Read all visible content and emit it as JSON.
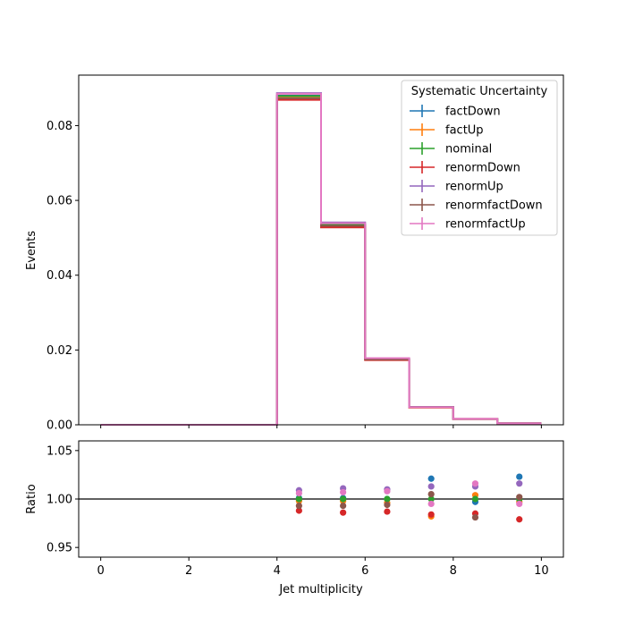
{
  "chart_data": [
    {
      "type": "step",
      "ylabel": "Events",
      "xlim": [
        -0.5,
        10.5
      ],
      "ylim": [
        0,
        0.0935
      ],
      "yticks": [
        0.0,
        0.02,
        0.04,
        0.06,
        0.08
      ],
      "ytick_labels": [
        "0.00",
        "0.02",
        "0.04",
        "0.06",
        "0.08"
      ],
      "bin_edges": [
        0,
        1,
        2,
        3,
        4,
        5,
        6,
        7,
        8,
        9,
        10
      ],
      "legend": {
        "title": "Systematic Uncertainty",
        "placement": "top-right"
      },
      "series": [
        {
          "name": "factDown",
          "color": "#1f77b4",
          "values": [
            0,
            0,
            0,
            0,
            0.088,
            0.0535,
            0.0176,
            0.00475,
            0.00155,
            0.0004
          ]
        },
        {
          "name": "factUp",
          "color": "#ff7f0e",
          "values": [
            0,
            0,
            0,
            0,
            0.0878,
            0.0534,
            0.0175,
            0.0046,
            0.00157,
            0.00039
          ]
        },
        {
          "name": "nominal",
          "color": "#2ca02c",
          "values": [
            0,
            0,
            0,
            0,
            0.0879,
            0.0535,
            0.0176,
            0.0047,
            0.00155,
            0.00039
          ]
        },
        {
          "name": "renormDown",
          "color": "#d62728",
          "values": [
            0,
            0,
            0,
            0,
            0.0869,
            0.0528,
            0.0173,
            0.00462,
            0.00153,
            0.00038
          ]
        },
        {
          "name": "renormUp",
          "color": "#9467bd",
          "values": [
            0,
            0,
            0,
            0,
            0.0887,
            0.0541,
            0.0178,
            0.00475,
            0.00157,
            0.0004
          ]
        },
        {
          "name": "renormfactDown",
          "color": "#8c564b",
          "values": [
            0,
            0,
            0,
            0,
            0.0873,
            0.0532,
            0.0175,
            0.00472,
            0.00152,
            0.00039
          ]
        },
        {
          "name": "renormfactUp",
          "color": "#e377c2",
          "values": [
            0,
            0,
            0,
            0,
            0.0885,
            0.0539,
            0.0178,
            0.00468,
            0.00157,
            0.00039
          ]
        }
      ]
    },
    {
      "type": "scatter",
      "xlabel": "Jet multiplicity",
      "ylabel": "Ratio",
      "xlim": [
        -0.5,
        10.5
      ],
      "ylim": [
        0.94,
        1.06
      ],
      "xticks": [
        0,
        2,
        4,
        6,
        8,
        10
      ],
      "xtick_labels": [
        "0",
        "2",
        "4",
        "6",
        "8",
        "10"
      ],
      "yticks": [
        0.95,
        1.0,
        1.05
      ],
      "ytick_labels": [
        "0.95",
        "1.00",
        "1.05"
      ],
      "reference_line": 1.0,
      "x": [
        4.5,
        5.5,
        6.5,
        7.5,
        8.5,
        9.5
      ],
      "series": [
        {
          "name": "factDown",
          "color": "#1f77b4",
          "values": [
            1.001,
            1.001,
            1.0,
            1.021,
            0.997,
            1.023
          ]
        },
        {
          "name": "factUp",
          "color": "#ff7f0e",
          "values": [
            0.998,
            0.998,
            0.996,
            0.982,
            1.004,
            0.997
          ]
        },
        {
          "name": "nominal",
          "color": "#2ca02c",
          "values": [
            1.0,
            1.0,
            1.0,
            1.0,
            1.0,
            1.0
          ]
        },
        {
          "name": "renormDown",
          "color": "#d62728",
          "values": [
            0.988,
            0.986,
            0.987,
            0.984,
            0.985,
            0.979
          ]
        },
        {
          "name": "renormUp",
          "color": "#9467bd",
          "values": [
            1.009,
            1.011,
            1.01,
            1.013,
            1.013,
            1.016
          ]
        },
        {
          "name": "renormfactDown",
          "color": "#8c564b",
          "values": [
            0.993,
            0.993,
            0.994,
            1.005,
            0.981,
            1.002
          ]
        },
        {
          "name": "renormfactUp",
          "color": "#e377c2",
          "values": [
            1.006,
            1.007,
            1.008,
            0.995,
            1.016,
            0.995
          ]
        }
      ]
    }
  ]
}
